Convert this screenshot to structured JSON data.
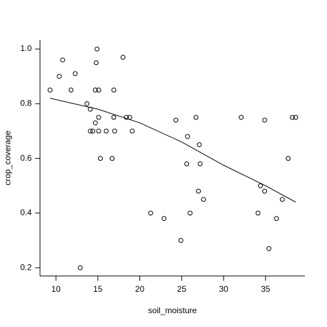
{
  "chart_data": {
    "type": "scatter",
    "x_label": "soil_moisture",
    "y_label": "crop_coverage",
    "xlim": [
      8.1,
      39.7
    ],
    "ylim": [
      0.17,
      1.033
    ],
    "xticks": [
      10,
      15,
      20,
      25,
      30,
      35
    ],
    "yticks": [
      0.2,
      0.4,
      0.6,
      0.8,
      {
        "value": 1,
        "label": "1.0"
      }
    ],
    "color": "#000000",
    "x": [
      9.3,
      10.4,
      10.8,
      11.8,
      12.3,
      12.9,
      13.7,
      14.1,
      14.1,
      14.4,
      14.7,
      14.8,
      14.9,
      14.7,
      15.1,
      15.1,
      15.1,
      15.3,
      16.0,
      16.7,
      16.9,
      16.9,
      17.0,
      18.0,
      18.4,
      18.8,
      19.1,
      21.3,
      22.9,
      24.3,
      24.9,
      25.7,
      25.6,
      26.0,
      26.7,
      27.0,
      27.1,
      27.2,
      27.6,
      32.1,
      34.1,
      34.4,
      34.9,
      34.9,
      35.4,
      36.3,
      37.0,
      37.7,
      38.2,
      38.6
    ],
    "y": [
      0.85,
      0.9,
      0.96,
      0.85,
      0.91,
      0.2,
      0.8,
      0.78,
      0.7,
      0.7,
      0.73,
      0.95,
      1.0,
      0.85,
      0.85,
      0.75,
      0.7,
      0.6,
      0.7,
      0.6,
      0.85,
      0.75,
      0.7,
      0.97,
      0.75,
      0.75,
      0.7,
      0.4,
      0.38,
      0.74,
      0.3,
      0.68,
      0.58,
      0.4,
      0.75,
      0.48,
      0.65,
      0.58,
      0.45,
      0.75,
      0.4,
      0.5,
      0.48,
      0.74,
      0.27,
      0.38,
      0.45,
      0.6,
      0.75,
      0.75
    ],
    "smooth": {
      "x": [
        9.3,
        15,
        20,
        25,
        30,
        35,
        38.6
      ],
      "y": [
        0.82,
        0.78,
        0.73,
        0.66,
        0.575,
        0.5,
        0.44
      ]
    }
  }
}
